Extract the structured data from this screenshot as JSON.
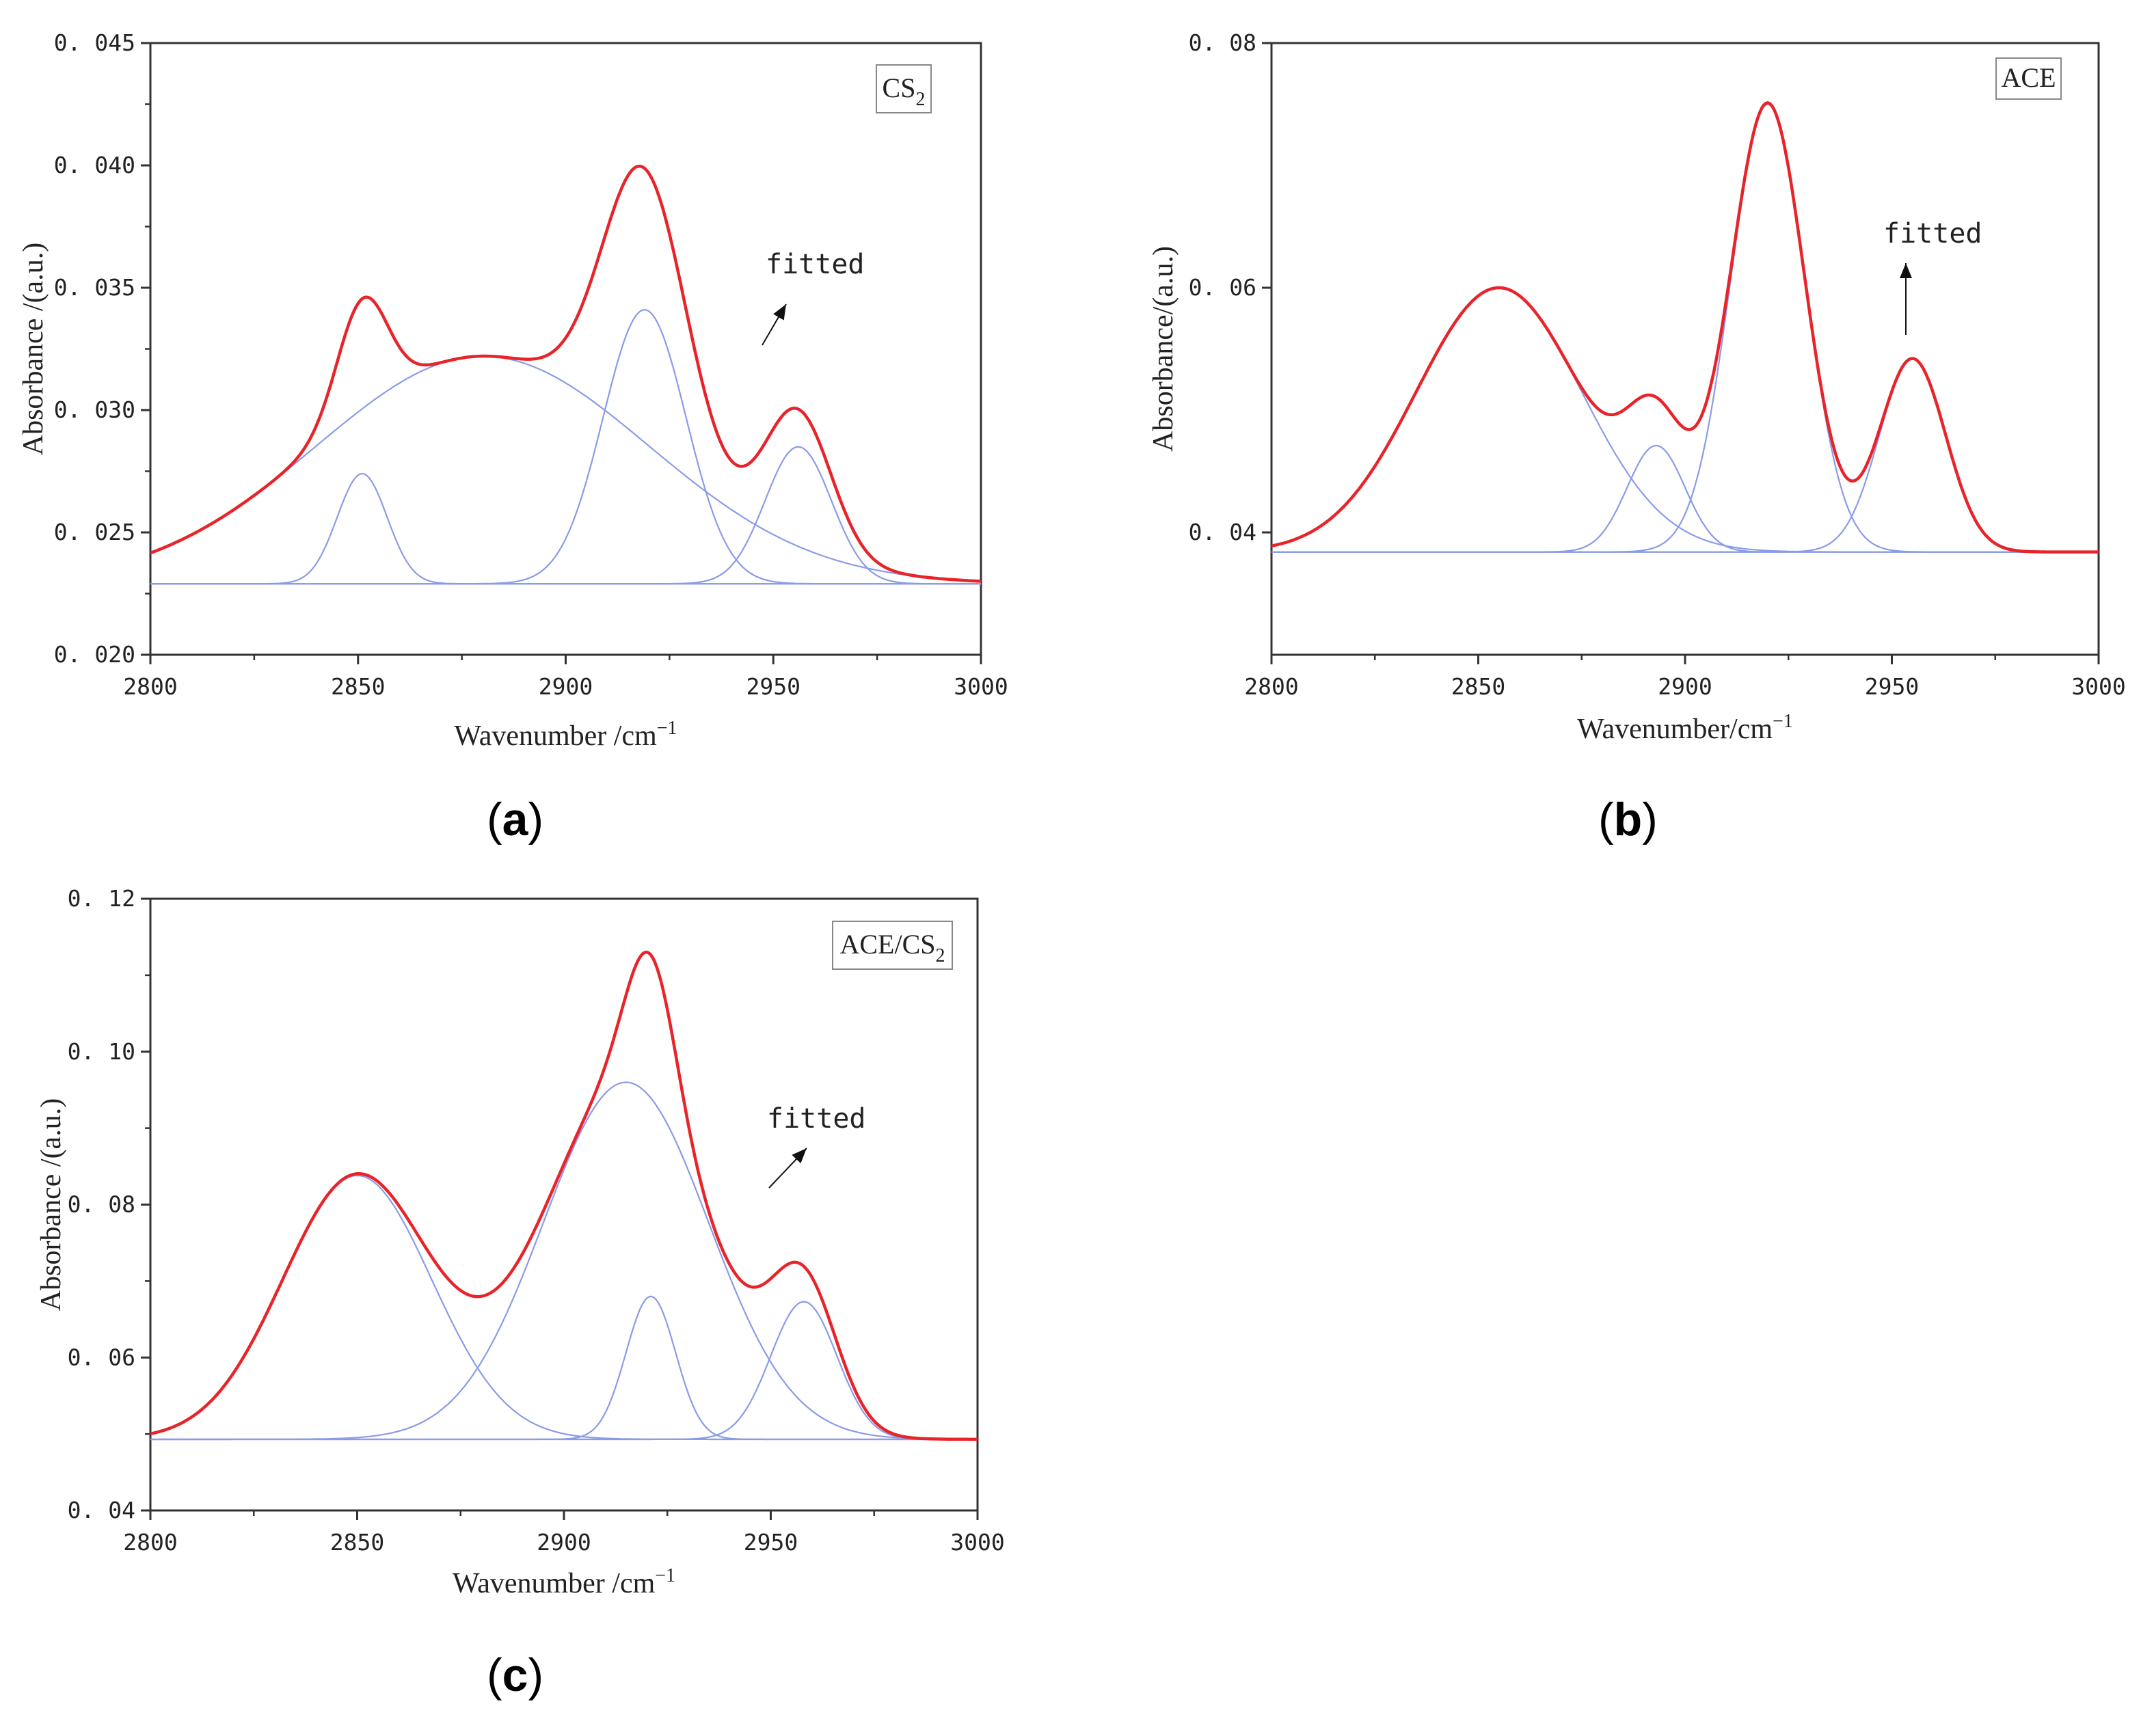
{
  "chart_data": [
    {
      "id": "a",
      "type": "line",
      "panel_label": "a",
      "legend": "CS2",
      "legend_main": "CS",
      "legend_sub": "2",
      "annotation": "fitted",
      "xlabel": "Wavenumber /cm",
      "xlabel_sup": "−1",
      "ylabel": "Absorbance /(a.u.)",
      "xlim": [
        2800,
        3000
      ],
      "ylim": [
        0.02,
        0.045
      ],
      "xticks": [
        2800,
        2850,
        2900,
        2950,
        3000
      ],
      "yticks": [
        0.02,
        0.025,
        0.03,
        0.035,
        0.04,
        0.045
      ],
      "ytick_labels": [
        "0. 020",
        "0. 025",
        "0. 030",
        "0. 035",
        "0. 040",
        "0. 045"
      ],
      "baseline": 0.0229,
      "components": [
        {
          "name": "broad band",
          "center": 2880,
          "amplitude": 0.0093,
          "sigma": 40
        },
        {
          "name": "peak 2850",
          "center": 2851,
          "amplitude": 0.0045,
          "sigma": 6
        },
        {
          "name": "peak 2920",
          "center": 2919,
          "amplitude": 0.0112,
          "sigma": 10
        },
        {
          "name": "peak 2956",
          "center": 2956,
          "amplitude": 0.0056,
          "sigma": 8
        }
      ],
      "fitted_color": "#e8242a",
      "component_color": "#8a9be8"
    },
    {
      "id": "b",
      "type": "line",
      "panel_label": "b",
      "legend": "ACE",
      "legend_main": "ACE",
      "legend_sub": "",
      "annotation": "fitted",
      "xlabel": "Wavenumber/cm",
      "xlabel_sup": "−1",
      "ylabel": "Absorbance/(a.u.)",
      "xlim": [
        2800,
        3000
      ],
      "ylim": [
        0.03,
        0.08
      ],
      "xticks": [
        2800,
        2850,
        2900,
        2950,
        3000
      ],
      "yticks": [
        0.04,
        0.06,
        0.08
      ],
      "ytick_labels": [
        "0. 04",
        "0. 06",
        "0. 08"
      ],
      "baseline": 0.0384,
      "components": [
        {
          "name": "peak 2855",
          "center": 2855,
          "amplitude": 0.0216,
          "sigma": 20
        },
        {
          "name": "peak 2893",
          "center": 2893,
          "amplitude": 0.0087,
          "sigma": 7
        },
        {
          "name": "peak 2920",
          "center": 2920,
          "amplitude": 0.0366,
          "sigma": 9
        },
        {
          "name": "peak 2955",
          "center": 2955,
          "amplitude": 0.0158,
          "sigma": 8
        }
      ],
      "fitted_color": "#e8242a",
      "component_color": "#8a9be8"
    },
    {
      "id": "c",
      "type": "line",
      "panel_label": "c",
      "legend": "ACE/CS2",
      "legend_main": "ACE/CS",
      "legend_sub": "2",
      "annotation": "fitted",
      "xlabel": "Wavenumber /cm",
      "xlabel_sup": "−1",
      "ylabel": "Absorbance /(a.u.)",
      "xlim": [
        2800,
        3000
      ],
      "ylim": [
        0.04,
        0.12
      ],
      "xticks": [
        2800,
        2850,
        2900,
        2950,
        3000
      ],
      "yticks": [
        0.04,
        0.06,
        0.08,
        0.1,
        0.12
      ],
      "ytick_labels": [
        "0. 04",
        "0. 06",
        "0. 08",
        "0. 10",
        "0. 12"
      ],
      "baseline": 0.0493,
      "components": [
        {
          "name": "peak 2850",
          "center": 2850,
          "amplitude": 0.0345,
          "sigma": 18
        },
        {
          "name": "broad band",
          "center": 2915,
          "amplitude": 0.0467,
          "sigma": 20
        },
        {
          "name": "peak 2921",
          "center": 2921,
          "amplitude": 0.0187,
          "sigma": 6
        },
        {
          "name": "peak 2958",
          "center": 2958,
          "amplitude": 0.018,
          "sigma": 8
        }
      ],
      "fitted_color": "#e8242a",
      "component_color": "#8a9be8"
    }
  ]
}
